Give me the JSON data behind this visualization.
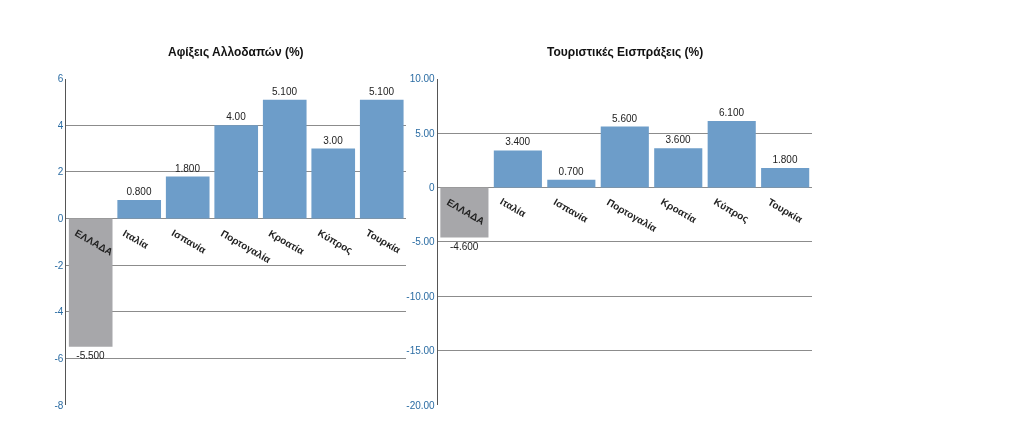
{
  "chart_data": [
    {
      "type": "bar",
      "title": "Αφίξεις Αλλοδαπών (%)",
      "categories": [
        "ΕΛΛΑΔΑ",
        "Ιταλία",
        "Ισπανία",
        "Πορτογαλία",
        "Κροατία",
        "Κύπρος",
        "Τουρκία"
      ],
      "values": [
        -5.5,
        0.8,
        1.8,
        4.0,
        5.1,
        3.0,
        5.1
      ],
      "value_labels": [
        "-5.500",
        "0.800",
        "1.800",
        "4.00",
        "5.100",
        "3.00",
        "5.100"
      ],
      "colors": [
        "#a7a7aa",
        "#6d9dc9",
        "#6d9dc9",
        "#6d9dc9",
        "#6d9dc9",
        "#6d9dc9",
        "#6d9dc9"
      ],
      "ylim": [
        -8,
        6
      ],
      "yticks": [
        -8,
        -6,
        -4,
        -2,
        0,
        2,
        4,
        6
      ],
      "grid": "y"
    },
    {
      "type": "bar",
      "title": "Τουριστικές Εισπράξεις (%)",
      "categories": [
        "ΕΛΛΑΔΑ",
        "Ιταλία",
        "Ισπανία",
        "Πορτογαλία",
        "Κροατία",
        "Κύπρος",
        "Τουρκία"
      ],
      "values": [
        -4.6,
        3.4,
        0.7,
        5.6,
        3.6,
        6.1,
        1.8
      ],
      "value_labels": [
        "-4.600",
        "3.400",
        "0.700",
        "5.600",
        "3.600",
        "6.100",
        "1.800"
      ],
      "colors": [
        "#a7a7aa",
        "#6d9dc9",
        "#6d9dc9",
        "#6d9dc9",
        "#6d9dc9",
        "#6d9dc9",
        "#6d9dc9"
      ],
      "ylim": [
        -20,
        10
      ],
      "yticks": [
        {
          "value": -20,
          "label": "-20.00"
        },
        {
          "value": -15,
          "label": "-15.00"
        },
        {
          "value": -10,
          "label": "-10.00"
        },
        {
          "value": -5,
          "label": "-5.00"
        },
        {
          "value": 0,
          "label": "0"
        },
        {
          "value": 5,
          "label": "5.00"
        },
        {
          "value": 10,
          "label": "10.00"
        }
      ],
      "grid": "y"
    }
  ]
}
